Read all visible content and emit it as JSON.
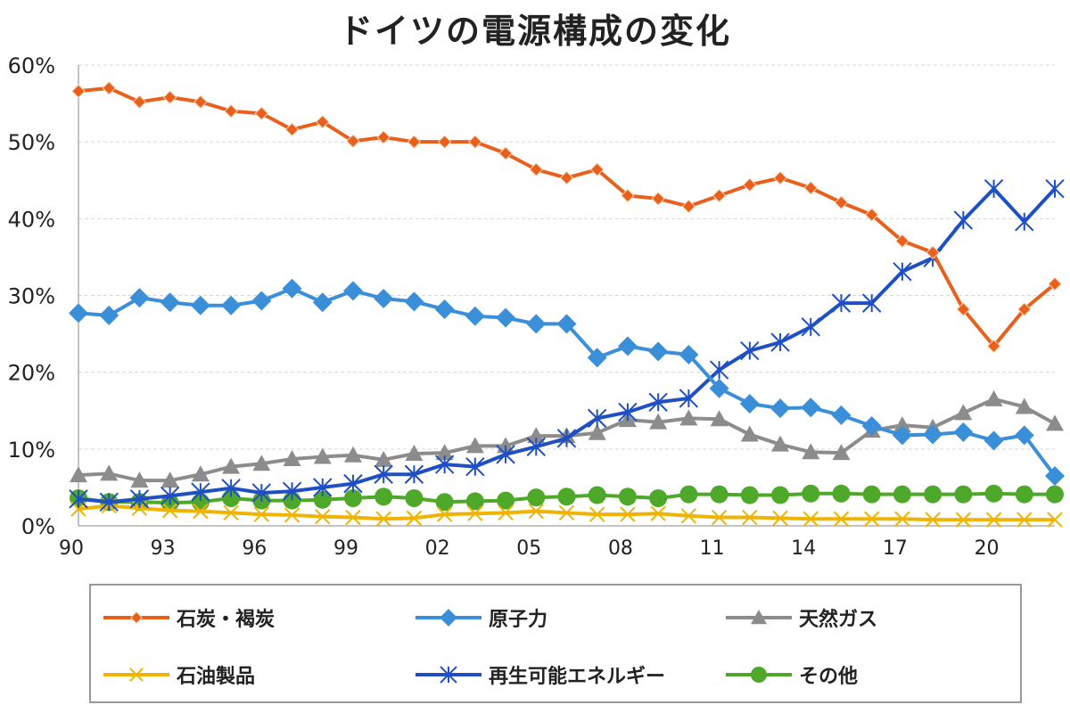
{
  "chart_data": {
    "type": "line",
    "title": "ドイツの電源構成の変化",
    "x": [
      1990,
      1991,
      1992,
      1993,
      1994,
      1995,
      1996,
      1997,
      1998,
      1999,
      2000,
      2001,
      2002,
      2003,
      2004,
      2005,
      2006,
      2007,
      2008,
      2009,
      2010,
      2011,
      2012,
      2013,
      2014,
      2015,
      2016,
      2017,
      2018,
      2019,
      2020,
      2021,
      2022
    ],
    "x_tick_labels": [
      "90",
      "93",
      "96",
      "99",
      "02",
      "05",
      "08",
      "11",
      "14",
      "17",
      "20"
    ],
    "x_tick_values": [
      1990,
      1993,
      1996,
      1999,
      2002,
      2005,
      2008,
      2011,
      2014,
      2017,
      2020
    ],
    "y_tick_labels": [
      "0%",
      "10%",
      "20%",
      "30%",
      "40%",
      "50%",
      "60%"
    ],
    "ylim": [
      0,
      60
    ],
    "grid": "horizontal dashed",
    "legend_position": "bottom",
    "series": [
      {
        "name": "石炭・褐炭",
        "color": "#e8601c",
        "marker": "diamond-small",
        "values": [
          56.6,
          57.0,
          55.2,
          55.8,
          55.2,
          54.0,
          53.7,
          51.6,
          52.6,
          50.1,
          50.6,
          50.0,
          50.0,
          50.0,
          48.5,
          46.4,
          45.3,
          46.4,
          43.0,
          42.6,
          41.6,
          43.0,
          44.4,
          45.3,
          44.0,
          42.1,
          40.5,
          37.1,
          35.6,
          28.2,
          23.4,
          28.2,
          31.5
        ]
      },
      {
        "name": "原子力",
        "color": "#3b8fd9",
        "marker": "diamond",
        "values": [
          27.7,
          27.4,
          29.7,
          29.1,
          28.7,
          28.7,
          29.3,
          30.9,
          29.1,
          30.6,
          29.6,
          29.2,
          28.2,
          27.3,
          27.1,
          26.3,
          26.3,
          21.9,
          23.4,
          22.7,
          22.3,
          17.9,
          15.9,
          15.3,
          15.4,
          14.4,
          13.0,
          11.8,
          11.9,
          12.2,
          11.1,
          11.8,
          6.5
        ]
      },
      {
        "name": "天然ガス",
        "color": "#8c8c8c",
        "marker": "triangle",
        "values": [
          6.6,
          6.8,
          5.9,
          5.9,
          6.7,
          7.7,
          8.1,
          8.7,
          9.0,
          9.2,
          8.6,
          9.4,
          9.5,
          10.4,
          10.4,
          11.7,
          11.7,
          12.1,
          13.8,
          13.5,
          14.0,
          13.9,
          11.9,
          10.6,
          9.6,
          9.5,
          12.4,
          13.1,
          12.8,
          14.7,
          16.5,
          15.5,
          13.3
        ]
      },
      {
        "name": "石油製品",
        "color": "#f0b400",
        "marker": "x",
        "values": [
          2.2,
          2.6,
          2.3,
          2.0,
          1.9,
          1.7,
          1.5,
          1.4,
          1.2,
          1.1,
          0.9,
          1.0,
          1.5,
          1.6,
          1.7,
          1.9,
          1.7,
          1.5,
          1.5,
          1.6,
          1.3,
          1.1,
          1.1,
          1.0,
          0.9,
          0.9,
          0.9,
          0.9,
          0.8,
          0.8,
          0.8,
          0.8,
          0.8
        ]
      },
      {
        "name": "再生可能エネルギー",
        "color": "#1f4fc4",
        "marker": "star",
        "values": [
          3.5,
          3.1,
          3.5,
          3.9,
          4.4,
          4.9,
          4.3,
          4.5,
          5.0,
          5.5,
          6.7,
          6.7,
          8.0,
          7.7,
          9.3,
          10.3,
          11.4,
          14.0,
          14.8,
          16.1,
          16.6,
          20.3,
          22.8,
          23.9,
          25.9,
          29.0,
          29.0,
          33.1,
          34.9,
          39.8,
          43.9,
          39.6,
          43.9
        ]
      },
      {
        "name": "その他",
        "color": "#4ea82a",
        "marker": "circle",
        "values": [
          3.6,
          3.1,
          3.1,
          3.0,
          3.1,
          3.6,
          3.3,
          3.3,
          3.4,
          3.6,
          3.8,
          3.6,
          3.1,
          3.2,
          3.3,
          3.7,
          3.8,
          4.0,
          3.8,
          3.6,
          4.1,
          4.1,
          4.0,
          4.0,
          4.2,
          4.2,
          4.1,
          4.1,
          4.1,
          4.1,
          4.2,
          4.1,
          4.1
        ]
      }
    ]
  }
}
